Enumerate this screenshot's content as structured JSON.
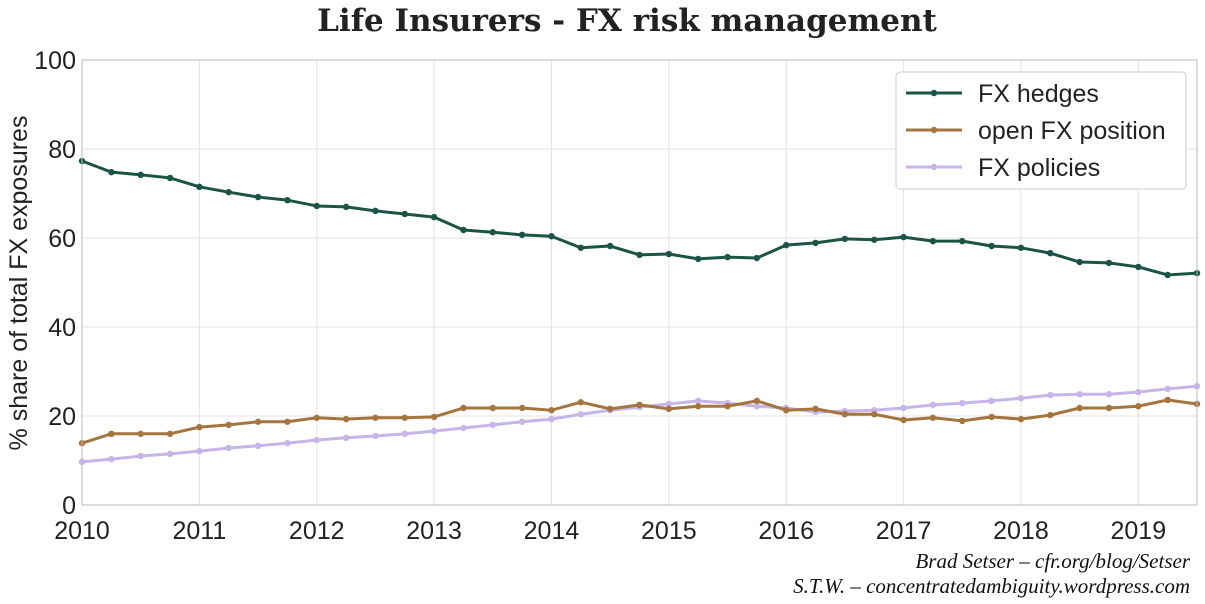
{
  "chart_data": {
    "type": "line",
    "title": "Life Insurers - FX risk management",
    "xlabel": "",
    "ylabel": "% share of total FX exposures",
    "xlim": [
      2010,
      2019.5
    ],
    "ylim": [
      0,
      100
    ],
    "xticks": [
      "2010",
      "2011",
      "2012",
      "2013",
      "2014",
      "2015",
      "2016",
      "2017",
      "2018",
      "2019"
    ],
    "yticks": [
      "0",
      "20",
      "40",
      "60",
      "80",
      "100"
    ],
    "grid": true,
    "legend_position": "top-right",
    "x": [
      2010.0,
      2010.25,
      2010.5,
      2010.75,
      2011.0,
      2011.25,
      2011.5,
      2011.75,
      2012.0,
      2012.25,
      2012.5,
      2012.75,
      2013.0,
      2013.25,
      2013.5,
      2013.75,
      2014.0,
      2014.25,
      2014.5,
      2014.75,
      2015.0,
      2015.25,
      2015.5,
      2015.75,
      2016.0,
      2016.25,
      2016.5,
      2016.75,
      2017.0,
      2017.25,
      2017.5,
      2017.75,
      2018.0,
      2018.25,
      2018.5,
      2018.75,
      2019.0,
      2019.25,
      2019.5
    ],
    "series": [
      {
        "name": "FX hedges",
        "color": "#1b5446",
        "values": [
          77.3,
          74.8,
          74.2,
          73.5,
          71.5,
          70.3,
          69.2,
          68.5,
          67.2,
          67.0,
          66.1,
          65.4,
          64.7,
          61.8,
          61.3,
          60.7,
          60.4,
          57.8,
          58.2,
          56.2,
          56.4,
          55.3,
          55.7,
          55.5,
          58.4,
          58.9,
          59.8,
          59.6,
          60.2,
          59.3,
          59.3,
          58.2,
          57.8,
          56.6,
          54.6,
          54.4,
          53.5,
          51.7,
          52.1
        ]
      },
      {
        "name": "open FX position",
        "color": "#a5753f",
        "values": [
          13.9,
          16.0,
          16.0,
          16.0,
          17.5,
          18.0,
          18.7,
          18.7,
          19.6,
          19.3,
          19.6,
          19.6,
          19.8,
          21.8,
          21.8,
          21.8,
          21.3,
          23.1,
          21.6,
          22.5,
          21.6,
          22.2,
          22.2,
          23.4,
          21.3,
          21.6,
          20.4,
          20.4,
          19.1,
          19.6,
          18.9,
          19.8,
          19.3,
          20.2,
          21.8,
          21.8,
          22.2,
          23.6,
          22.7
        ]
      },
      {
        "name": "FX policies",
        "color": "#c5b5ea",
        "values": [
          9.7,
          10.3,
          11.0,
          11.5,
          12.1,
          12.8,
          13.3,
          13.9,
          14.6,
          15.1,
          15.5,
          16.0,
          16.6,
          17.3,
          18.0,
          18.7,
          19.3,
          20.4,
          21.3,
          22.0,
          22.7,
          23.4,
          22.9,
          22.2,
          21.8,
          20.9,
          21.1,
          21.3,
          21.8,
          22.5,
          22.9,
          23.4,
          24.0,
          24.7,
          24.9,
          24.9,
          25.4,
          26.1,
          26.7
        ]
      }
    ]
  },
  "credits": [
    "Brad Setser – cfr.org/blog/Setser",
    "S.T.W. – concentratedambiguity.wordpress.com"
  ]
}
